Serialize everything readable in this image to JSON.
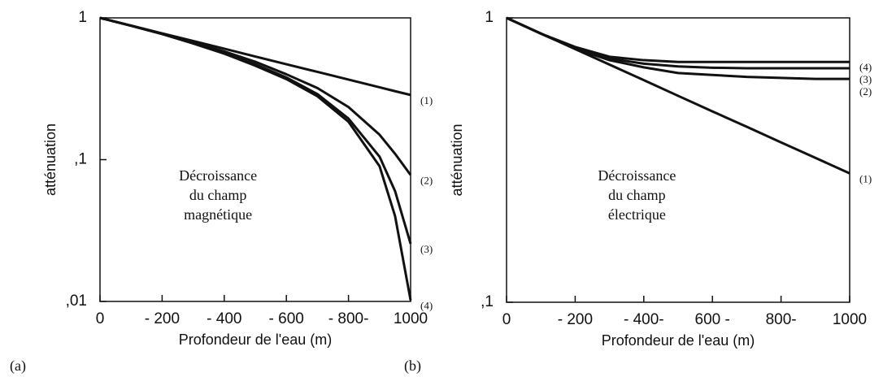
{
  "chart_data": [
    {
      "type": "line",
      "panel_label": "(a)",
      "xlabel": "Profondeur de l'eau (m)",
      "ylabel": "atténuation",
      "annotation": [
        "Décroissance",
        "du champ",
        "magnétique"
      ],
      "x": [
        0,
        100,
        200,
        300,
        400,
        500,
        600,
        700,
        800,
        900,
        950,
        1000
      ],
      "series": [
        {
          "name": "(1)",
          "color": "#111111",
          "values": [
            1,
            0.882,
            0.778,
            0.687,
            0.606,
            0.534,
            0.471,
            0.416,
            0.367,
            0.324,
            0.304,
            0.286
          ]
        },
        {
          "name": "(2)",
          "color": "#111111",
          "values": [
            1,
            0.88,
            0.77,
            0.67,
            0.58,
            0.49,
            0.4,
            0.32,
            0.235,
            0.15,
            0.11,
            0.078
          ]
        },
        {
          "name": "(3)",
          "color": "#111111",
          "values": [
            1,
            0.88,
            0.77,
            0.66,
            0.56,
            0.47,
            0.38,
            0.29,
            0.195,
            0.105,
            0.06,
            0.0255
          ]
        },
        {
          "name": "(4)",
          "color": "#111111",
          "values": [
            1,
            0.88,
            0.77,
            0.66,
            0.56,
            0.46,
            0.37,
            0.28,
            0.185,
            0.09,
            0.04,
            0.0102
          ]
        }
      ],
      "xlim": [
        0,
        1000
      ],
      "xticks": [
        0,
        {
          "value": 200,
          "label": "- 200"
        },
        {
          "value": 400,
          "label": "- 400"
        },
        {
          "value": 600,
          "label": "- 600"
        },
        {
          "value": 800,
          "label": "- 800-"
        },
        1000
      ],
      "ylim": [
        0.01,
        1
      ],
      "log_y": true,
      "yticks": [
        1,
        {
          "value": 0.1,
          "label": ",1"
        },
        {
          "value": 0.01,
          "label": ",01"
        }
      ]
    },
    {
      "type": "line",
      "panel_label": "(b)",
      "xlabel": "Profondeur de l'eau (m)",
      "ylabel": "atténuation",
      "annotation": [
        "Décroissance",
        "du champ",
        "électrique"
      ],
      "x": [
        0,
        100,
        200,
        300,
        400,
        500,
        600,
        700,
        800,
        900,
        1000
      ],
      "series": [
        {
          "name": "(1)",
          "color": "#111111",
          "values": [
            1,
            0.882,
            0.777,
            0.685,
            0.604,
            0.532,
            0.469,
            0.414,
            0.365,
            0.322,
            0.284
          ]
        },
        {
          "name": "(2)",
          "color": "#111111",
          "values": [
            1,
            0.88,
            0.78,
            0.71,
            0.67,
            0.64,
            0.63,
            0.62,
            0.615,
            0.61,
            0.61
          ]
        },
        {
          "name": "(3)",
          "color": "#111111",
          "values": [
            1,
            0.88,
            0.78,
            0.72,
            0.69,
            0.675,
            0.668,
            0.665,
            0.665,
            0.665,
            0.665
          ]
        },
        {
          "name": "(4)",
          "color": "#111111",
          "values": [
            1,
            0.88,
            0.79,
            0.73,
            0.71,
            0.7,
            0.7,
            0.7,
            0.7,
            0.7,
            0.7
          ]
        }
      ],
      "xlim": [
        0,
        1000
      ],
      "xticks": [
        0,
        {
          "value": 200,
          "label": "- 200"
        },
        {
          "value": 400,
          "label": "- 400-"
        },
        {
          "value": 600,
          "label": "600 -"
        },
        {
          "value": 800,
          "label": "800-"
        },
        1000
      ],
      "ylim": [
        0.1,
        1
      ],
      "log_y": true,
      "yticks": [
        1,
        {
          "value": 0.1,
          "label": ",1"
        }
      ]
    }
  ]
}
